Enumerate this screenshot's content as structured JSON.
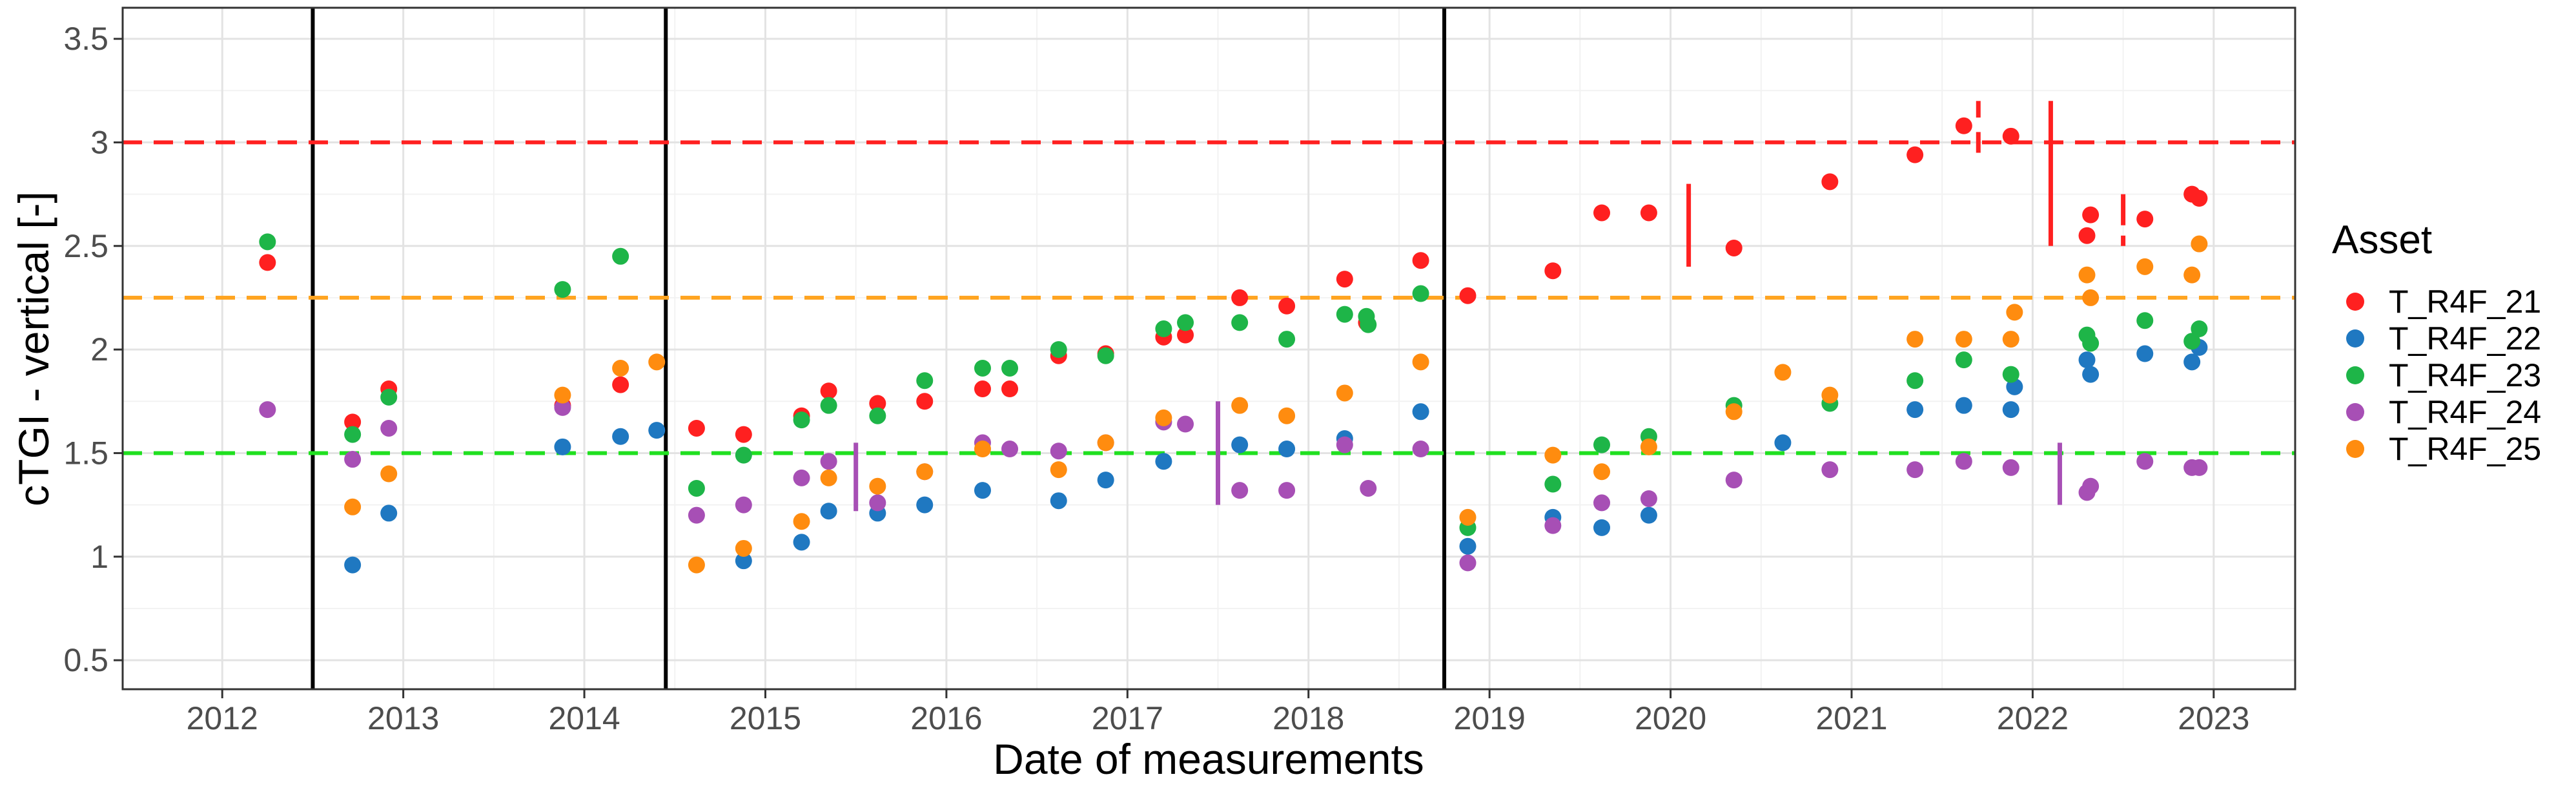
{
  "chart_data": {
    "type": "scatter",
    "title": "",
    "xlabel": "Date of measurements",
    "ylabel": "cTGI - vertical [-]",
    "xlim": [
      2011.45,
      2023.45
    ],
    "ylim": [
      0.36,
      3.65
    ],
    "x_ticks": [
      2012,
      2013,
      2014,
      2015,
      2016,
      2017,
      2018,
      2019,
      2020,
      2021,
      2022,
      2023
    ],
    "x_tick_labels": [
      "2012",
      "2013",
      "2014",
      "2015",
      "2016",
      "2017",
      "2018",
      "2019",
      "2020",
      "2021",
      "2022",
      "2023"
    ],
    "y_ticks": [
      0.5,
      1,
      1.5,
      2,
      2.5,
      3,
      3.5
    ],
    "y_tick_labels": [
      "0.5",
      "1",
      "1.5",
      "2",
      "2.5",
      "3",
      "3.5"
    ],
    "grid": true,
    "legend": {
      "title": "Asset",
      "position": "right"
    },
    "reference_lines": [
      {
        "value": 3.0,
        "color": "#ff2020",
        "style": "dashed"
      },
      {
        "value": 2.25,
        "color": "#ffa420",
        "style": "dashed"
      },
      {
        "value": 1.5,
        "color": "#20e020",
        "style": "dashed"
      }
    ],
    "vertical_lines": [
      {
        "x": 2012.5,
        "color": "#000000"
      },
      {
        "x": 2014.45,
        "color": "#000000"
      },
      {
        "x": 2018.75,
        "color": "#000000"
      }
    ],
    "segments": [
      {
        "x": 2015.5,
        "y0": 1.22,
        "y1": 1.55,
        "color": "#a74fb5"
      },
      {
        "x": 2017.5,
        "y0": 1.25,
        "y1": 1.75,
        "color": "#a74fb5"
      },
      {
        "x": 2020.1,
        "y0": 2.4,
        "y1": 2.8,
        "color": "#ff2020"
      },
      {
        "x": 2021.7,
        "y0": 3.12,
        "y1": 3.2,
        "color": "#ff2020"
      },
      {
        "x": 2021.7,
        "y0": 2.95,
        "y1": 3.05,
        "color": "#ff2020"
      },
      {
        "x": 2022.1,
        "y0": 2.5,
        "y1": 3.2,
        "color": "#ff2020"
      },
      {
        "x": 2022.5,
        "y0": 2.6,
        "y1": 2.75,
        "color": "#ff2020"
      },
      {
        "x": 2022.5,
        "y0": 2.5,
        "y1": 2.55,
        "color": "#ff2020"
      },
      {
        "x": 2022.15,
        "y0": 1.25,
        "y1": 1.55,
        "color": "#a74fb5"
      }
    ],
    "series": [
      {
        "name": "T_R4F_21",
        "color": "#ff2020",
        "points": [
          [
            2012.25,
            2.42
          ],
          [
            2012.72,
            1.65
          ],
          [
            2012.92,
            1.81
          ],
          [
            2013.88,
            1.73
          ],
          [
            2014.2,
            1.83
          ],
          [
            2014.62,
            1.62
          ],
          [
            2014.88,
            1.59
          ],
          [
            2015.2,
            1.68
          ],
          [
            2015.35,
            1.8
          ],
          [
            2015.62,
            1.74
          ],
          [
            2015.88,
            1.75
          ],
          [
            2016.2,
            1.81
          ],
          [
            2016.35,
            1.81
          ],
          [
            2016.62,
            1.97
          ],
          [
            2016.88,
            1.98
          ],
          [
            2017.2,
            2.06
          ],
          [
            2017.32,
            2.07
          ],
          [
            2017.62,
            2.25
          ],
          [
            2017.88,
            2.21
          ],
          [
            2018.2,
            2.34
          ],
          [
            2018.32,
            2.13
          ],
          [
            2018.62,
            2.43
          ],
          [
            2018.88,
            2.26
          ],
          [
            2019.35,
            2.38
          ],
          [
            2019.62,
            2.66
          ],
          [
            2019.88,
            2.66
          ],
          [
            2020.35,
            2.49
          ],
          [
            2020.88,
            2.81
          ],
          [
            2021.35,
            2.94
          ],
          [
            2021.62,
            3.08
          ],
          [
            2021.88,
            3.03
          ],
          [
            2022.3,
            2.55
          ],
          [
            2022.32,
            2.65
          ],
          [
            2022.62,
            2.63
          ],
          [
            2022.88,
            2.75
          ],
          [
            2022.92,
            2.73
          ]
        ]
      },
      {
        "name": "T_R4F_22",
        "color": "#1f78c1",
        "points": [
          [
            2012.72,
            0.96
          ],
          [
            2012.92,
            1.21
          ],
          [
            2013.88,
            1.53
          ],
          [
            2014.2,
            1.58
          ],
          [
            2014.4,
            1.61
          ],
          [
            2014.88,
            0.98
          ],
          [
            2015.2,
            1.07
          ],
          [
            2015.35,
            1.22
          ],
          [
            2015.62,
            1.21
          ],
          [
            2015.88,
            1.25
          ],
          [
            2016.2,
            1.32
          ],
          [
            2016.62,
            1.27
          ],
          [
            2016.88,
            1.37
          ],
          [
            2017.2,
            1.46
          ],
          [
            2017.62,
            1.54
          ],
          [
            2017.88,
            1.52
          ],
          [
            2018.2,
            1.57
          ],
          [
            2018.62,
            1.7
          ],
          [
            2018.88,
            1.05
          ],
          [
            2019.35,
            1.19
          ],
          [
            2019.62,
            1.14
          ],
          [
            2019.88,
            1.2
          ],
          [
            2020.62,
            1.55
          ],
          [
            2021.35,
            1.71
          ],
          [
            2021.62,
            1.73
          ],
          [
            2021.88,
            1.71
          ],
          [
            2021.9,
            1.82
          ],
          [
            2022.3,
            1.95
          ],
          [
            2022.32,
            1.88
          ],
          [
            2022.62,
            1.98
          ],
          [
            2022.88,
            1.94
          ],
          [
            2022.92,
            2.01
          ]
        ]
      },
      {
        "name": "T_R4F_23",
        "color": "#1eb548",
        "points": [
          [
            2012.25,
            2.52
          ],
          [
            2012.72,
            1.59
          ],
          [
            2012.92,
            1.77
          ],
          [
            2013.88,
            2.29
          ],
          [
            2014.2,
            2.45
          ],
          [
            2014.62,
            1.33
          ],
          [
            2014.88,
            1.49
          ],
          [
            2015.2,
            1.66
          ],
          [
            2015.35,
            1.73
          ],
          [
            2015.62,
            1.68
          ],
          [
            2015.88,
            1.85
          ],
          [
            2016.2,
            1.91
          ],
          [
            2016.35,
            1.91
          ],
          [
            2016.62,
            2.0
          ],
          [
            2016.88,
            1.97
          ],
          [
            2017.2,
            2.1
          ],
          [
            2017.32,
            2.13
          ],
          [
            2017.62,
            2.13
          ],
          [
            2017.88,
            2.05
          ],
          [
            2018.2,
            2.17
          ],
          [
            2018.32,
            2.16
          ],
          [
            2018.33,
            2.12
          ],
          [
            2018.62,
            2.27
          ],
          [
            2018.88,
            1.14
          ],
          [
            2019.35,
            1.35
          ],
          [
            2019.62,
            1.54
          ],
          [
            2019.88,
            1.58
          ],
          [
            2020.35,
            1.73
          ],
          [
            2020.88,
            1.74
          ],
          [
            2021.35,
            1.85
          ],
          [
            2021.62,
            1.95
          ],
          [
            2021.88,
            1.88
          ],
          [
            2022.3,
            2.07
          ],
          [
            2022.32,
            2.03
          ],
          [
            2022.62,
            2.14
          ],
          [
            2022.88,
            2.04
          ],
          [
            2022.92,
            2.1
          ]
        ]
      },
      {
        "name": "T_R4F_24",
        "color": "#a74fb5",
        "points": [
          [
            2012.25,
            1.71
          ],
          [
            2012.72,
            1.47
          ],
          [
            2012.92,
            1.62
          ],
          [
            2013.88,
            1.72
          ],
          [
            2014.62,
            1.2
          ],
          [
            2014.88,
            1.25
          ],
          [
            2015.2,
            1.38
          ],
          [
            2015.35,
            1.46
          ],
          [
            2015.62,
            1.26
          ],
          [
            2015.88,
            1.41
          ],
          [
            2016.2,
            1.55
          ],
          [
            2016.35,
            1.52
          ],
          [
            2016.62,
            1.51
          ],
          [
            2016.88,
            1.55
          ],
          [
            2017.2,
            1.65
          ],
          [
            2017.32,
            1.64
          ],
          [
            2017.62,
            1.32
          ],
          [
            2017.88,
            1.32
          ],
          [
            2018.2,
            1.54
          ],
          [
            2018.33,
            1.33
          ],
          [
            2018.62,
            1.52
          ],
          [
            2018.88,
            0.97
          ],
          [
            2019.35,
            1.15
          ],
          [
            2019.62,
            1.26
          ],
          [
            2019.88,
            1.28
          ],
          [
            2020.35,
            1.37
          ],
          [
            2020.88,
            1.42
          ],
          [
            2021.35,
            1.42
          ],
          [
            2021.62,
            1.46
          ],
          [
            2021.88,
            1.43
          ],
          [
            2022.3,
            1.31
          ],
          [
            2022.32,
            1.34
          ],
          [
            2022.62,
            1.46
          ],
          [
            2022.88,
            1.43
          ],
          [
            2022.92,
            1.43
          ]
        ]
      },
      {
        "name": "T_R4F_25",
        "color": "#ff8c0f",
        "points": [
          [
            2012.72,
            1.24
          ],
          [
            2012.92,
            1.4
          ],
          [
            2013.88,
            1.78
          ],
          [
            2014.2,
            1.91
          ],
          [
            2014.4,
            1.94
          ],
          [
            2014.62,
            0.96
          ],
          [
            2014.88,
            1.04
          ],
          [
            2015.2,
            1.17
          ],
          [
            2015.35,
            1.38
          ],
          [
            2015.62,
            1.34
          ],
          [
            2015.88,
            1.41
          ],
          [
            2016.2,
            1.52
          ],
          [
            2016.62,
            1.42
          ],
          [
            2016.88,
            1.55
          ],
          [
            2017.2,
            1.67
          ],
          [
            2017.62,
            1.73
          ],
          [
            2017.88,
            1.68
          ],
          [
            2018.2,
            1.79
          ],
          [
            2018.62,
            1.94
          ],
          [
            2018.88,
            1.19
          ],
          [
            2019.35,
            1.49
          ],
          [
            2019.62,
            1.41
          ],
          [
            2019.88,
            1.53
          ],
          [
            2020.35,
            1.7
          ],
          [
            2020.62,
            1.89
          ],
          [
            2020.88,
            1.78
          ],
          [
            2021.35,
            2.05
          ],
          [
            2021.62,
            2.05
          ],
          [
            2021.88,
            2.05
          ],
          [
            2021.9,
            2.18
          ],
          [
            2022.3,
            2.36
          ],
          [
            2022.32,
            2.25
          ],
          [
            2022.62,
            2.4
          ],
          [
            2022.88,
            2.36
          ],
          [
            2022.92,
            2.51
          ]
        ]
      }
    ]
  }
}
